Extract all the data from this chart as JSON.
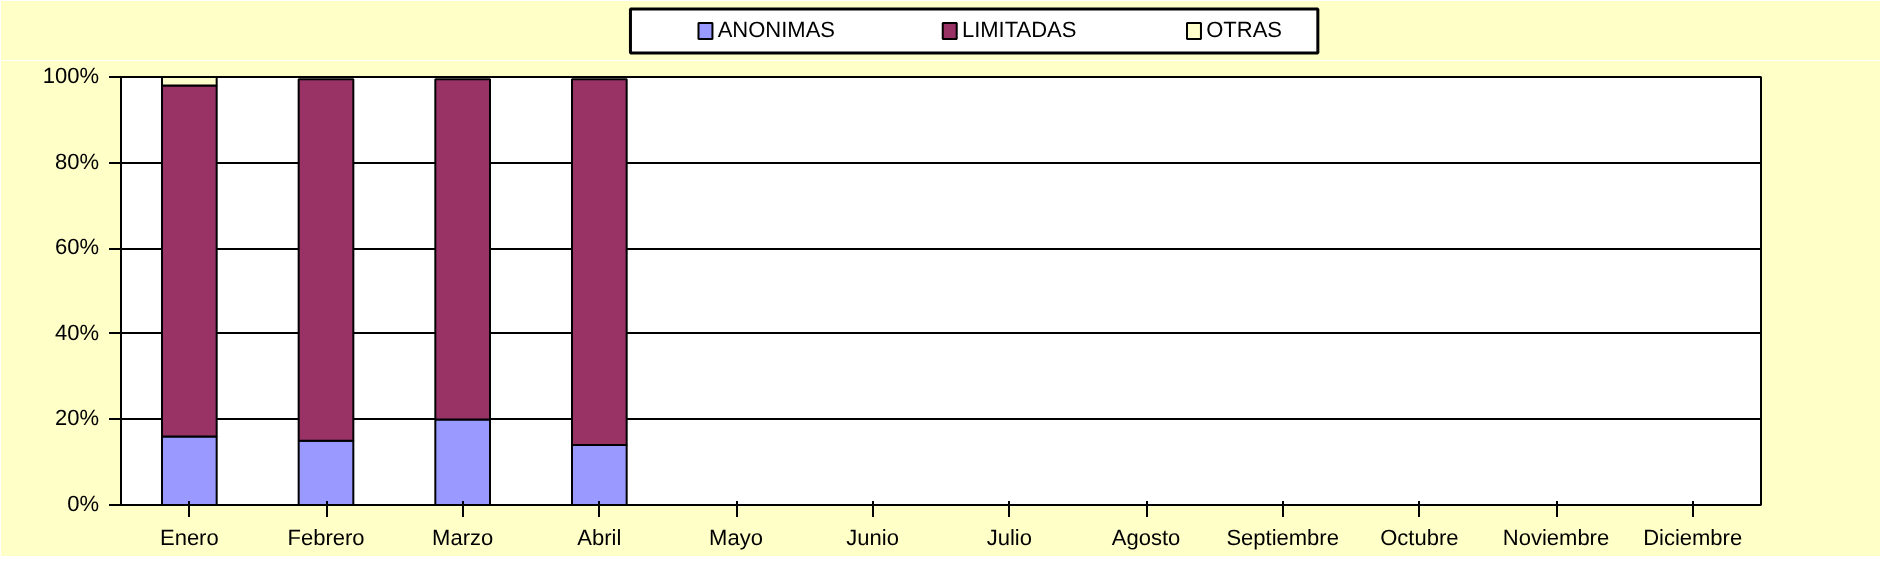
{
  "chart_data": {
    "type": "bar",
    "stacked": true,
    "categories": [
      "Enero",
      "Febrero",
      "Marzo",
      "Abril",
      "Mayo",
      "Junio",
      "Julio",
      "Agosto",
      "Septiembre",
      "Octubre",
      "Noviembre",
      "Diciembre"
    ],
    "series": [
      {
        "name": "ANONIMAS",
        "color": "#9999ff",
        "values": [
          16,
          15,
          20,
          14,
          null,
          null,
          null,
          null,
          null,
          null,
          null,
          null
        ]
      },
      {
        "name": "LIMITADAS",
        "color": "#993366",
        "values": [
          82,
          84.5,
          79.5,
          85.5,
          null,
          null,
          null,
          null,
          null,
          null,
          null,
          null
        ]
      },
      {
        "name": "OTRAS",
        "color": "#ffffcc",
        "values": [
          2,
          null,
          null,
          null,
          null,
          null,
          null,
          null,
          null,
          null,
          null,
          null
        ]
      }
    ],
    "ylim": [
      0,
      100
    ],
    "yticks": [
      {
        "value": 0,
        "label": "0%"
      },
      {
        "value": 20,
        "label": "20%"
      },
      {
        "value": 40,
        "label": "40%"
      },
      {
        "value": 60,
        "label": "60%"
      },
      {
        "value": 80,
        "label": "80%"
      },
      {
        "value": 100,
        "label": "100%"
      }
    ],
    "grid": "y",
    "legend": "top"
  }
}
